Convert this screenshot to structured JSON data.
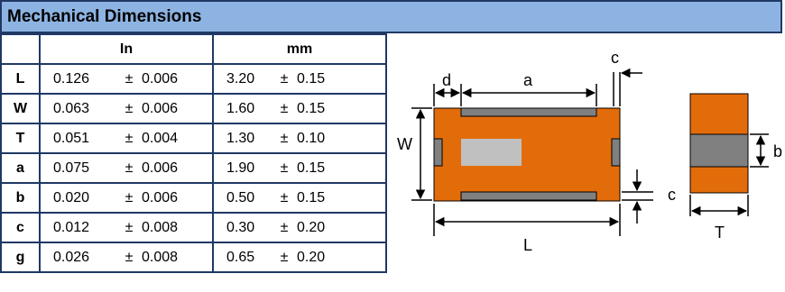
{
  "title": "Mechanical Dimensions",
  "columns": {
    "in": "In",
    "mm": "mm"
  },
  "pm": "±",
  "rows": [
    {
      "sym": "L",
      "in_nom": "0.126",
      "in_tol": "0.006",
      "mm_nom": "3.20",
      "mm_tol": "0.15"
    },
    {
      "sym": "W",
      "in_nom": "0.063",
      "in_tol": "0.006",
      "mm_nom": "1.60",
      "mm_tol": "0.15"
    },
    {
      "sym": "T",
      "in_nom": "0.051",
      "in_tol": "0.004",
      "mm_nom": "1.30",
      "mm_tol": "0.10"
    },
    {
      "sym": "a",
      "in_nom": "0.075",
      "in_tol": "0.006",
      "mm_nom": "1.90",
      "mm_tol": "0.15"
    },
    {
      "sym": "b",
      "in_nom": "0.020",
      "in_tol": "0.006",
      "mm_nom": "0.50",
      "mm_tol": "0.15"
    },
    {
      "sym": "c",
      "in_nom": "0.012",
      "in_tol": "0.008",
      "mm_nom": "0.30",
      "mm_tol": "0.20"
    },
    {
      "sym": "g",
      "in_nom": "0.026",
      "in_tol": "0.008",
      "mm_nom": "0.65",
      "mm_tol": "0.20"
    }
  ],
  "diagram": {
    "labels": {
      "d": "d",
      "a": "a",
      "c_top": "c",
      "W": "W",
      "c_right": "c",
      "L": "L",
      "b": "b",
      "T": "T"
    },
    "colors": {
      "body": "#e36c0a",
      "terminal": "#808080",
      "marking": "#c0c0c0",
      "border": "#1f3864",
      "header": "#8db3e2"
    }
  }
}
